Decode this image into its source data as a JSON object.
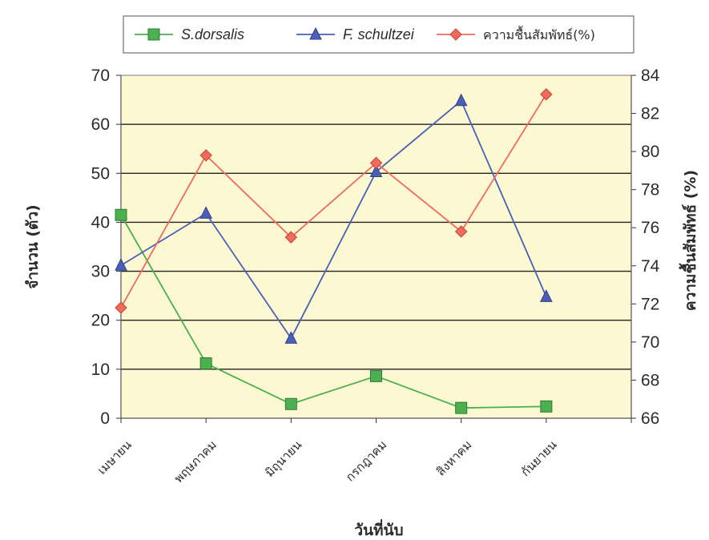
{
  "chart_data": {
    "type": "line",
    "categories": [
      "เมษายน",
      "พฤษภาคม",
      "มิถุนายน",
      "กรกฎาคม",
      "สิงหาคม",
      "กันยายน"
    ],
    "series": [
      {
        "name": "S.dorsalis",
        "axis": "left",
        "color": "#4caf50",
        "marker": "square",
        "values": [
          41.5,
          11.2,
          2.9,
          8.6,
          2.1,
          2.4
        ]
      },
      {
        "name": "F. schultzei",
        "axis": "left",
        "color": "#4a5fb8",
        "marker": "triangle",
        "values": [
          31.2,
          41.8,
          16.3,
          50.3,
          64.8,
          24.8
        ]
      },
      {
        "name": "ความชื้นสัมพัทธ์(%)",
        "axis": "right",
        "color": "#f06b5d",
        "marker": "diamond",
        "values": [
          71.8,
          79.8,
          75.5,
          79.4,
          75.8,
          83.0
        ]
      }
    ],
    "xlabel": "วันที่นับ",
    "ylabel": "จำนวน (ตัว)",
    "y2label": "ความชื้นสัมพัทธ์ (%)",
    "ylim": [
      0,
      70
    ],
    "y2lim": [
      66,
      84
    ],
    "yticks": [
      "0",
      "10",
      "20",
      "30",
      "40",
      "50",
      "60",
      "70"
    ],
    "y2ticks": [
      "66",
      "68",
      "70",
      "72",
      "74",
      "76",
      "78",
      "80",
      "82",
      "84"
    ],
    "grid": true,
    "legend_position": "top",
    "plot_background": "#fbf8d2"
  }
}
